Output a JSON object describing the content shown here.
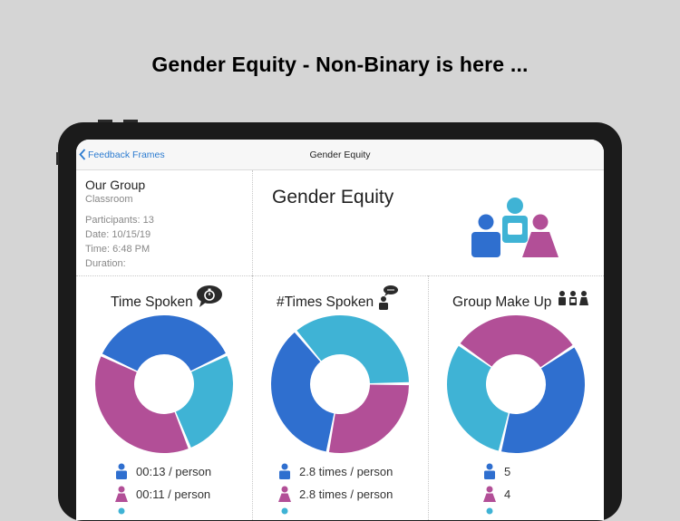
{
  "headline": "Gender Equity - Non-Binary is here ...",
  "nav": {
    "back_label": "Feedback Frames",
    "title": "Gender Equity"
  },
  "group": {
    "name": "Our Group",
    "type": "Classroom",
    "participants": "Participants: 13",
    "date": "Date: 10/15/19",
    "time": "Time: 6:48 PM",
    "duration": "Duration:"
  },
  "main_title": "Gender Equity",
  "colors": {
    "male": "#2f6fcf",
    "female": "#b24f97",
    "nonbinary": "#3fb3d5"
  },
  "chart_data": [
    {
      "type": "pie",
      "title": "Time Spoken",
      "icon": "stopwatch-bubble-icon",
      "slices": [
        {
          "group": "male",
          "value": 36
        },
        {
          "group": "nonbinary",
          "value": 26
        },
        {
          "group": "female",
          "value": 38
        }
      ],
      "legend": [
        "00:13 / person",
        "00:11 / person"
      ]
    },
    {
      "type": "pie",
      "title": "#Times Spoken",
      "icon": "speaking-person-icon",
      "slices": [
        {
          "group": "nonbinary",
          "value": 36
        },
        {
          "group": "female",
          "value": 28
        },
        {
          "group": "male",
          "value": 36
        }
      ],
      "legend": [
        "2.8 times / person",
        "2.8 times / person"
      ]
    },
    {
      "type": "pie",
      "title": "Group Make Up",
      "icon": "group-people-icon",
      "slices": [
        {
          "group": "female",
          "value": 31
        },
        {
          "group": "male",
          "value": 38
        },
        {
          "group": "nonbinary",
          "value": 31
        }
      ],
      "legend": [
        "5",
        "4"
      ]
    }
  ]
}
